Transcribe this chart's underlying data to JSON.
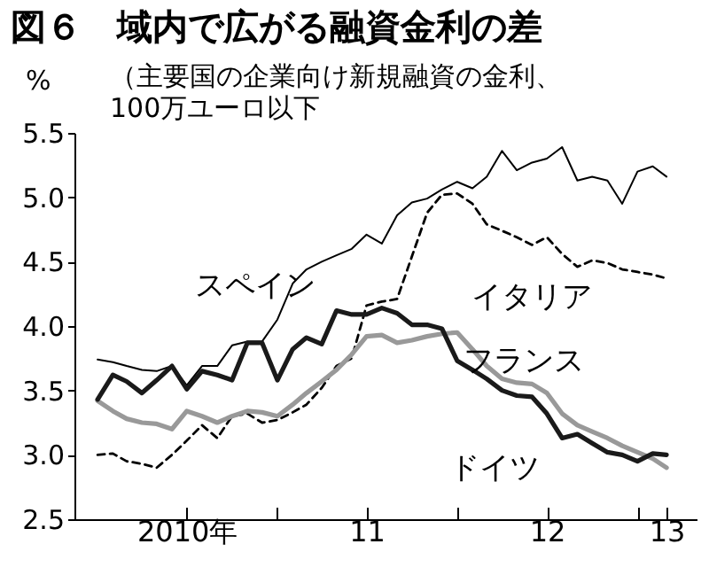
{
  "chart_data": {
    "type": "line",
    "title": "図６　域内で広がる融資金利の差",
    "subtitle": "（主要国の企業向け新規融資の金利、100万ユーロ以下",
    "ylabel": "%",
    "x": [
      "2010-01",
      "2010-02",
      "2010-03",
      "2010-04",
      "2010-05",
      "2010-06",
      "2010-07",
      "2010-08",
      "2010-09",
      "2010-10",
      "2010-11",
      "2010-12",
      "2011-01",
      "2011-02",
      "2011-03",
      "2011-04",
      "2011-05",
      "2011-06",
      "2011-07",
      "2011-08",
      "2011-09",
      "2011-10",
      "2011-11",
      "2011-12",
      "2012-01",
      "2012-02",
      "2012-03",
      "2012-04",
      "2012-05",
      "2012-06",
      "2012-07",
      "2012-08",
      "2012-09",
      "2012-10",
      "2012-11",
      "2012-12",
      "2013-01",
      "2013-02",
      "2013-03"
    ],
    "series": [
      {
        "name": "スペイン",
        "color": "#000000",
        "values": [
          3.74,
          3.72,
          3.69,
          3.66,
          3.65,
          3.69,
          3.54,
          3.69,
          3.69,
          3.85,
          3.88,
          3.88,
          4.05,
          4.33,
          4.44,
          4.5,
          4.55,
          4.6,
          4.71,
          4.64,
          4.86,
          4.96,
          4.99,
          5.06,
          5.12,
          5.07,
          5.16,
          5.36,
          5.21,
          5.27,
          5.3,
          5.39,
          5.13,
          5.16,
          5.13,
          4.95,
          5.2,
          5.24,
          5.16
        ]
      },
      {
        "name": "イタリア",
        "color": "#000000",
        "line_style": "dashed",
        "values": [
          3.0,
          3.01,
          2.95,
          2.93,
          2.9,
          3.0,
          3.11,
          3.23,
          3.13,
          3.3,
          3.32,
          3.25,
          3.27,
          3.33,
          3.39,
          3.52,
          3.69,
          3.75,
          4.16,
          4.19,
          4.21,
          4.54,
          4.88,
          5.02,
          5.03,
          4.95,
          4.79,
          4.74,
          4.69,
          4.63,
          4.69,
          4.56,
          4.46,
          4.51,
          4.49,
          4.44,
          4.42,
          4.4,
          4.37
        ]
      },
      {
        "name": "フランス",
        "color": "#999999",
        "values": [
          3.42,
          3.34,
          3.28,
          3.25,
          3.24,
          3.2,
          3.34,
          3.3,
          3.25,
          3.3,
          3.34,
          3.33,
          3.3,
          3.39,
          3.48,
          3.57,
          3.66,
          3.78,
          3.92,
          3.93,
          3.87,
          3.89,
          3.92,
          3.94,
          3.95,
          3.82,
          3.69,
          3.59,
          3.56,
          3.55,
          3.48,
          3.32,
          3.23,
          3.18,
          3.13,
          3.07,
          3.02,
          2.97,
          2.9
        ]
      },
      {
        "name": "ドイツ",
        "color": "#1a1a1a",
        "values": [
          3.43,
          3.62,
          3.57,
          3.48,
          3.58,
          3.69,
          3.51,
          3.65,
          3.62,
          3.58,
          3.87,
          3.87,
          3.58,
          3.82,
          3.91,
          3.86,
          4.12,
          4.09,
          4.09,
          4.14,
          4.1,
          4.01,
          4.01,
          3.98,
          3.73,
          3.66,
          3.59,
          3.5,
          3.46,
          3.45,
          3.32,
          3.13,
          3.16,
          3.09,
          3.02,
          3.0,
          2.95,
          3.01,
          3.0
        ]
      }
    ],
    "xlim": [
      "2009-11-15",
      "2013-05"
    ],
    "xticks": [
      {
        "value": "2010-07",
        "label": "2010年"
      },
      {
        "value": "2011-01",
        "label": null
      },
      {
        "value": "2011-07",
        "label": "11"
      },
      {
        "value": "2012-01",
        "label": null
      },
      {
        "value": "2012-07",
        "label": "12"
      },
      {
        "value": "2013-01",
        "label": null
      },
      {
        "value": "2013-03",
        "label": "13"
      }
    ],
    "ylim": [
      2.5,
      5.5
    ],
    "yticks": [
      2.5,
      {
        "value": 3,
        "label": "3.0"
      },
      3.5,
      {
        "value": 4,
        "label": "4.0"
      },
      4.5,
      {
        "value": 5,
        "label": "5.0"
      },
      5.5
    ],
    "grid": false
  }
}
